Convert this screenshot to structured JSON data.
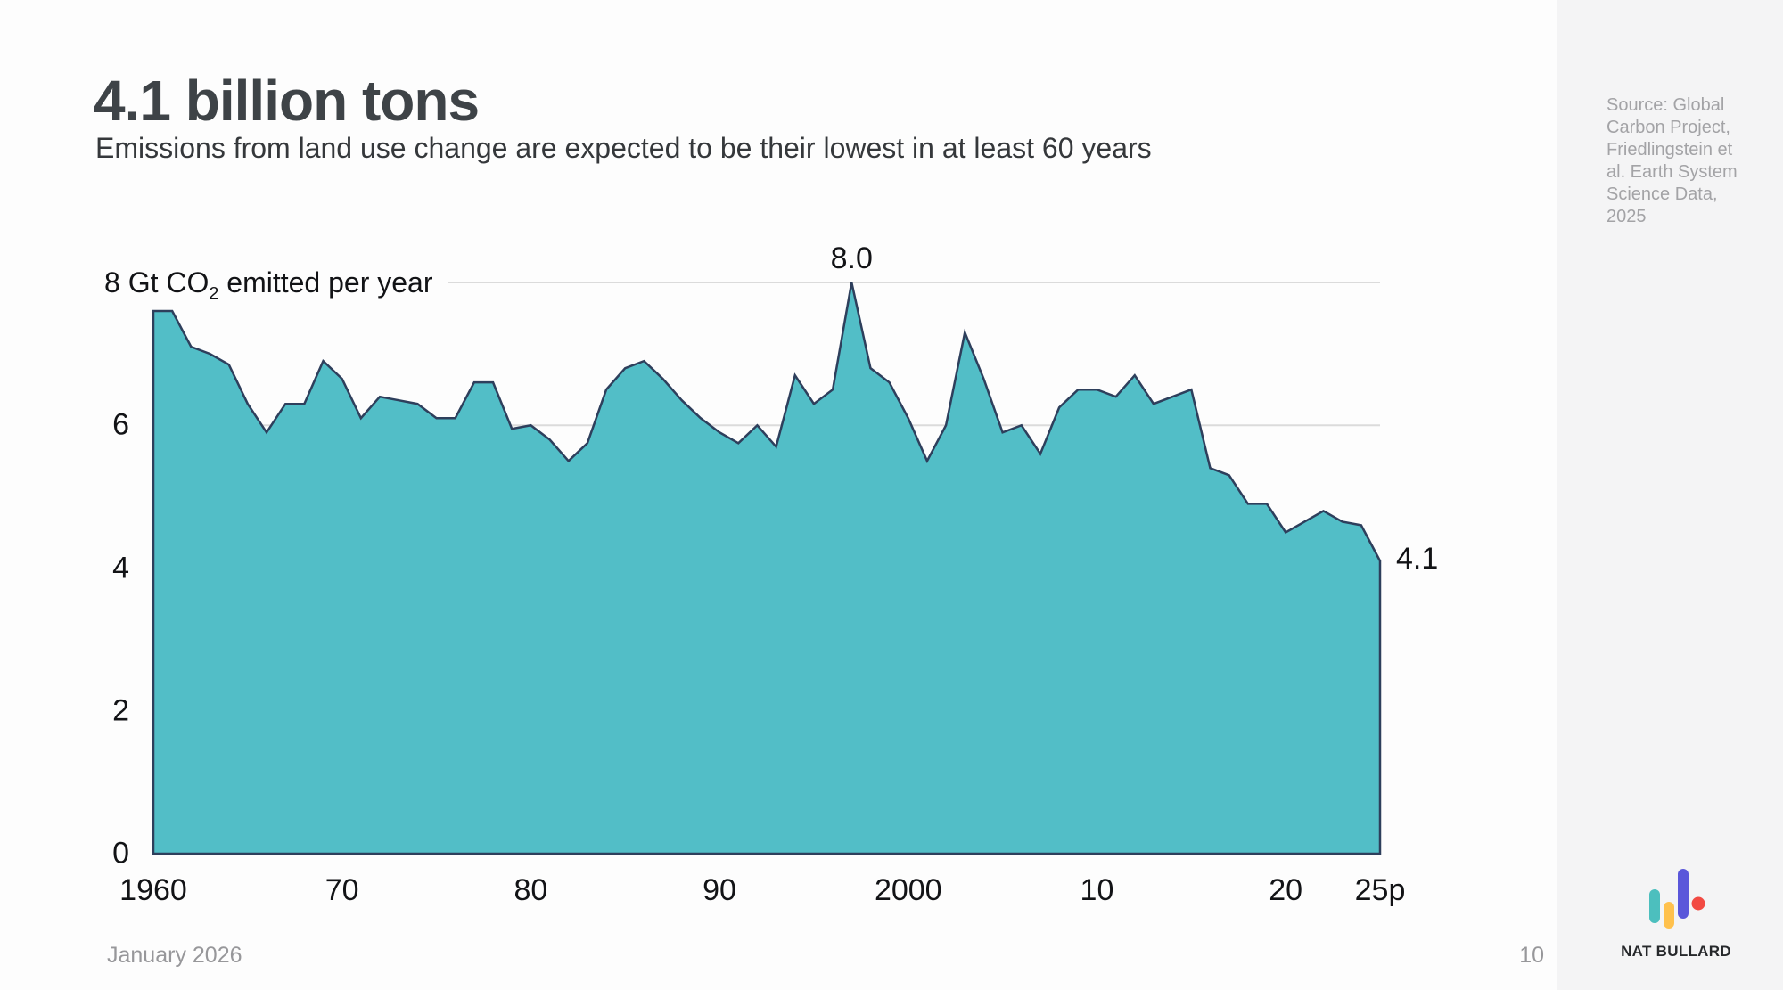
{
  "slide": {
    "title": "4.1 billion tons",
    "subtitle": "Emissions from land use change are expected to be their lowest in at least 60 years",
    "source_note": "Source: Global Carbon Project, Friedlingstein et al. Earth System Science Data, 2025",
    "logo_text": "NAT BULLARD",
    "footer": {
      "date": "January 2026",
      "page_number": "10"
    }
  },
  "colors": {
    "area_fill": "#52BEC7",
    "area_line": "#2E3F5C",
    "gridline": "#DBDBDB",
    "background": "#FDFDFD",
    "sidebar_background": "#F4F4F5",
    "logo_teal": "#4CBFBE",
    "logo_amber": "#FFC14D",
    "logo_indigo": "#5A57DA",
    "logo_red": "#F24A43"
  },
  "chart_data": {
    "type": "area",
    "series_name": "CO2 emissions from land use change",
    "ylabel_parts": {
      "pre": "8 Gt CO",
      "sub": "2",
      "post": " emitted per year"
    },
    "xlim": [
      1960,
      2025
    ],
    "ylim": [
      0,
      8
    ],
    "grid_y_values": [
      6,
      8
    ],
    "y_ticks": [
      0,
      2,
      4,
      6
    ],
    "x_ticks": [
      {
        "year": 1960,
        "label": "1960"
      },
      {
        "year": 1970,
        "label": "70"
      },
      {
        "year": 1980,
        "label": "80"
      },
      {
        "year": 1990,
        "label": "90"
      },
      {
        "year": 2000,
        "label": "2000"
      },
      {
        "year": 2010,
        "label": "10"
      },
      {
        "year": 2020,
        "label": "20"
      },
      {
        "year": 2025,
        "label": "25p"
      }
    ],
    "x": [
      1960,
      1961,
      1962,
      1963,
      1964,
      1965,
      1966,
      1967,
      1968,
      1969,
      1970,
      1971,
      1972,
      1973,
      1974,
      1975,
      1976,
      1977,
      1978,
      1979,
      1980,
      1981,
      1982,
      1983,
      1984,
      1985,
      1986,
      1987,
      1988,
      1989,
      1990,
      1991,
      1992,
      1993,
      1994,
      1995,
      1996,
      1997,
      1998,
      1999,
      2000,
      2001,
      2002,
      2003,
      2004,
      2005,
      2006,
      2007,
      2008,
      2009,
      2010,
      2011,
      2012,
      2013,
      2014,
      2015,
      2016,
      2017,
      2018,
      2019,
      2020,
      2021,
      2022,
      2023,
      2024,
      2025
    ],
    "values": [
      7.6,
      7.6,
      7.1,
      7.0,
      6.85,
      6.3,
      5.9,
      6.3,
      6.3,
      6.9,
      6.65,
      6.1,
      6.4,
      6.35,
      6.3,
      6.1,
      6.1,
      6.6,
      6.6,
      5.95,
      6.0,
      5.8,
      5.5,
      5.75,
      6.5,
      6.8,
      6.9,
      6.65,
      6.35,
      6.1,
      5.9,
      5.75,
      6.0,
      5.7,
      6.7,
      6.3,
      6.5,
      8.0,
      6.8,
      6.6,
      6.1,
      5.5,
      6.0,
      7.3,
      6.65,
      5.9,
      6.0,
      5.6,
      6.25,
      6.5,
      6.5,
      6.4,
      6.7,
      6.3,
      6.4,
      6.5,
      5.4,
      5.3,
      4.9,
      4.9,
      4.5,
      4.65,
      4.8,
      4.65,
      4.6,
      4.1
    ],
    "annotations": [
      {
        "text": "8.0",
        "year": 1997,
        "value": 8.0
      },
      {
        "text": "4.1",
        "year": 2025,
        "value": 4.1
      }
    ]
  }
}
